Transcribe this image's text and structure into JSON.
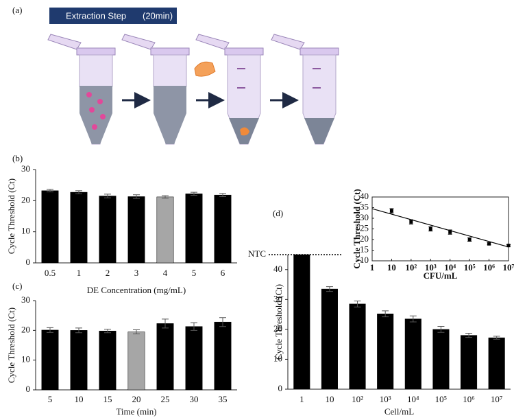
{
  "panel_a": {
    "label": "(a)",
    "banner": "Extraction Step",
    "banner_note": "(20min)"
  },
  "chart_data": [
    {
      "type": "bar",
      "panel_label": "(b)",
      "x_label": "DE Concentration  (mg/mL)",
      "y_label": "Cycle Threshold (Ct)",
      "categories": [
        "0.5",
        "1",
        "2",
        "3",
        "4",
        "5",
        "6"
      ],
      "values": [
        23.2,
        22.7,
        21.5,
        21.3,
        21.2,
        22.2,
        21.8
      ],
      "errors": [
        0.4,
        0.5,
        0.6,
        0.6,
        0.4,
        0.5,
        0.5
      ],
      "colors": [
        "#000000",
        "#000000",
        "#000000",
        "#000000",
        "#a6a6a6",
        "#000000",
        "#000000"
      ],
      "ylim": [
        0,
        30
      ],
      "yticks": [
        0,
        10,
        20,
        30
      ]
    },
    {
      "type": "bar",
      "panel_label": "(c)",
      "x_label": "Time  (min)",
      "y_label": "Cycle Threshold (Ct)",
      "categories": [
        "5",
        "10",
        "15",
        "20",
        "25",
        "30",
        "35"
      ],
      "values": [
        20.1,
        20.0,
        19.8,
        19.5,
        22.3,
        21.3,
        22.8
      ],
      "errors": [
        0.8,
        0.8,
        0.6,
        0.7,
        1.5,
        1.3,
        1.5
      ],
      "colors": [
        "#000000",
        "#000000",
        "#000000",
        "#a6a6a6",
        "#000000",
        "#000000",
        "#000000"
      ],
      "ylim": [
        0,
        30
      ],
      "yticks": [
        0,
        10,
        20,
        30
      ]
    },
    {
      "type": "bar",
      "panel_label": "(d)",
      "x_label": "Cell/mL",
      "y_label": "Cycle Threshold (Ct)",
      "categories": [
        "1",
        "10",
        "10²",
        "10³",
        "10⁴",
        "10⁵",
        "10⁶",
        "10⁷"
      ],
      "values": [
        45,
        33.5,
        28.5,
        25.2,
        23.5,
        20.0,
        18.0,
        17.2
      ],
      "errors": [
        0,
        0.8,
        1.0,
        1.0,
        1.0,
        1.0,
        0.7,
        0.5
      ],
      "color": "#000000",
      "ylim": [
        0,
        45
      ],
      "yticks": [
        0,
        10,
        20,
        30,
        40,
        {
          "value": 45,
          "label": "NTC"
        }
      ]
    },
    {
      "type": "scatter",
      "x_label": "CFU/mL",
      "y_label": "Cycle Threshold (Ct)",
      "log_x": true,
      "x": [
        10,
        100,
        1000,
        10000,
        100000,
        1000000,
        10000000
      ],
      "y": [
        33.5,
        28.3,
        25.0,
        23.5,
        20.0,
        18.0,
        17.2
      ],
      "errors": [
        1.0,
        1.0,
        1.0,
        1.0,
        0.8,
        0.5,
        0.4
      ],
      "trendline": {
        "x": [
          1,
          10000000
        ],
        "y": [
          34.5,
          16.5
        ]
      },
      "xlim": [
        1,
        10000000
      ],
      "xticks": [
        1,
        10,
        {
          "value": 100,
          "label": "10²"
        },
        {
          "value": 1000,
          "label": "10³"
        },
        {
          "value": 10000,
          "label": "10⁴"
        },
        {
          "value": 100000,
          "label": "10⁵"
        },
        {
          "value": 1000000,
          "label": "10⁶"
        },
        {
          "value": 10000000,
          "label": "10⁷"
        }
      ],
      "ylim": [
        10,
        40
      ],
      "yticks": [
        10,
        15,
        20,
        25,
        30,
        35,
        40
      ]
    }
  ]
}
